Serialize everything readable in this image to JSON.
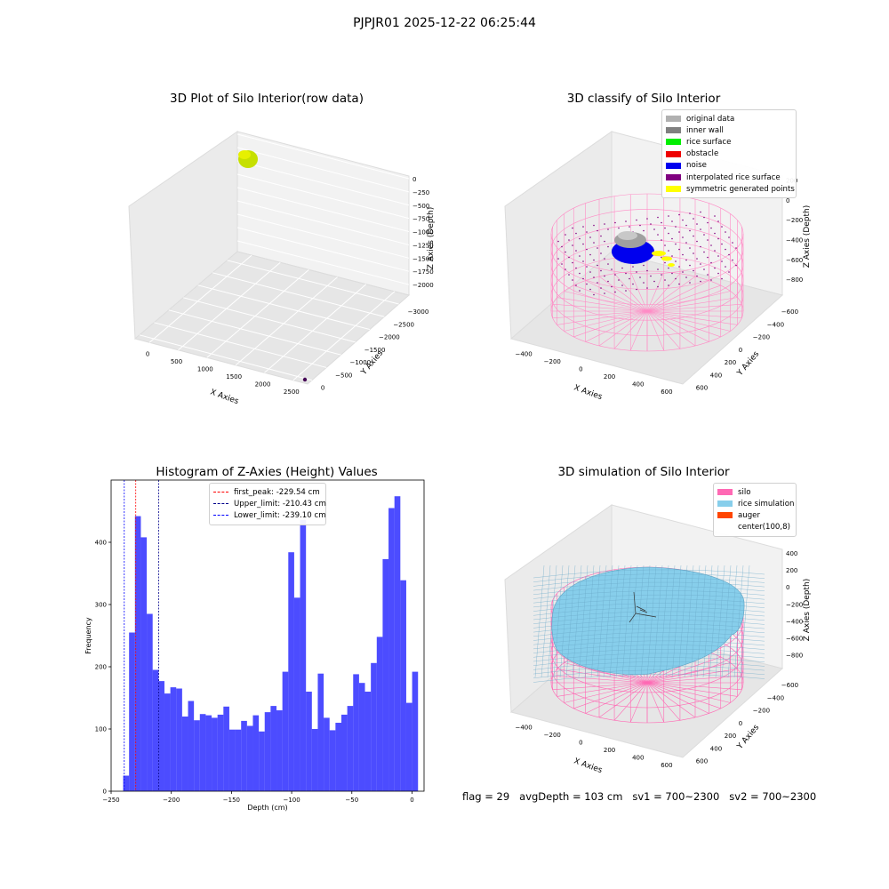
{
  "figure": {
    "suptitle": "PJPJR01 2025-12-22 06:25:44"
  },
  "panels": {
    "raw": {
      "title": "3D Plot of Silo Interior(row data)",
      "xlabel": "X Axies",
      "ylabel": "Y Axies",
      "zlabel": "Z Axies (Depth)",
      "xticks": [
        "0",
        "500",
        "1000",
        "1500",
        "2000",
        "2500"
      ],
      "yticks": [
        "0",
        "−500",
        "−1000",
        "−1500",
        "−2000",
        "−2500",
        "−3000"
      ],
      "zticks": [
        "0",
        "−250",
        "−500",
        "−750",
        "−1000",
        "−1250",
        "−1500",
        "−1750",
        "−2000"
      ]
    },
    "classify": {
      "title": "3D classify of Silo Interior",
      "xlabel": "X Axies",
      "ylabel": "Y Axies",
      "zlabel": "Z Axies (Depth)",
      "xticks": [
        "−400",
        "−200",
        "0",
        "200",
        "400",
        "600"
      ],
      "yticks": [
        "600",
        "400",
        "200",
        "0",
        "−200",
        "−400",
        "−600"
      ],
      "zticks": [
        "200",
        "0",
        "−200",
        "−400",
        "−600",
        "−800"
      ],
      "legend": [
        {
          "label": "original data",
          "color": "#b0b0b0"
        },
        {
          "label": "inner wall",
          "color": "#808080"
        },
        {
          "label": "rice surface",
          "color": "#00ee00"
        },
        {
          "label": "obstacle",
          "color": "#ee0000"
        },
        {
          "label": "noise",
          "color": "#0000ee"
        },
        {
          "label": "interpolated rice surface",
          "color": "#800080"
        },
        {
          "label": "symmetric generated points",
          "color": "#ffff00"
        }
      ]
    },
    "simulation": {
      "title": "3D simulation of Silo Interior",
      "xlabel": "X Axies",
      "ylabel": "Y Axies",
      "zlabel": "Z Axies (Depth)",
      "xticks": [
        "−400",
        "−200",
        "0",
        "200",
        "400",
        "600"
      ],
      "yticks": [
        "600",
        "400",
        "200",
        "0",
        "−200",
        "−400",
        "−600"
      ],
      "zticks": [
        "400",
        "200",
        "0",
        "−200",
        "−400",
        "−600",
        "−800"
      ],
      "legend": [
        {
          "label": "silo",
          "color": "#ff69b4"
        },
        {
          "label": "rice simulation",
          "color": "#87ceeb"
        },
        {
          "label": "auger",
          "color": "#ff4500"
        },
        {
          "label": "center(100,8)",
          "color": "#ffffff"
        }
      ]
    }
  },
  "footer": {
    "flag": "flag = 29",
    "avg": "avgDepth = 103 cm",
    "sv1": "sv1 = 700~2300",
    "sv2": "sv2 = 700~2300"
  },
  "chart_data": [
    {
      "type": "bar",
      "title": "Histogram of Z-Axies (Height) Values",
      "xlabel": "Depth (cm)",
      "ylabel": "Frequency",
      "xlim": [
        -250,
        10
      ],
      "ylim": [
        0,
        500
      ],
      "xticks": [
        -250,
        -200,
        -150,
        -100,
        -50,
        0
      ],
      "yticks": [
        0,
        100,
        200,
        300,
        400
      ],
      "bin_start": -240,
      "bin_width": 4.9,
      "color": "#0000ff",
      "values": [
        25,
        255,
        442,
        408,
        285,
        195,
        177,
        157,
        167,
        165,
        120,
        145,
        114,
        124,
        122,
        118,
        123,
        136,
        99,
        99,
        113,
        105,
        122,
        96,
        127,
        137,
        130,
        192,
        384,
        311,
        436,
        160,
        100,
        189,
        118,
        98,
        110,
        123,
        137,
        188,
        174,
        160,
        206,
        248,
        373,
        455,
        474,
        339,
        142,
        192
      ],
      "vlines": [
        {
          "label": "first_peak: -229.54 cm",
          "x": -229.54,
          "color": "#ff0000"
        },
        {
          "label": "Upper_limit: -210.43 cm",
          "x": -210.43,
          "color": "#00008b"
        },
        {
          "label": "Lower_limit: -239.10 cm",
          "x": -239.1,
          "color": "#0000ff"
        }
      ]
    }
  ]
}
